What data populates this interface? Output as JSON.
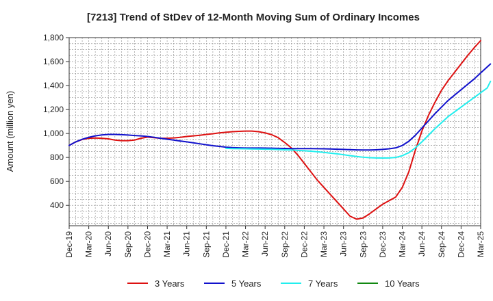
{
  "chart_data": {
    "type": "line",
    "title": "[7213]  Trend of StDev of 12-Month Moving Sum of Ordinary Incomes",
    "xlabel": "",
    "ylabel": "Amount (million yen)",
    "ylim": [
      230,
      1800
    ],
    "yticks": [
      400,
      600,
      800,
      1000,
      1200,
      1400,
      1600,
      1800
    ],
    "ytick_labels": [
      "400",
      "600",
      "800",
      "1,000",
      "1,200",
      "1,400",
      "1,600",
      "1,800"
    ],
    "xticks": [
      "Dec-19",
      "Mar-20",
      "Jun-20",
      "Sep-20",
      "Dec-20",
      "Mar-21",
      "Jun-21",
      "Sep-21",
      "Dec-21",
      "Mar-22",
      "Jun-22",
      "Sep-22",
      "Dec-22",
      "Mar-23",
      "Jun-23",
      "Sep-23",
      "Dec-23",
      "Mar-24",
      "Jun-24",
      "Sep-24",
      "Dec-24",
      "Mar-25"
    ],
    "grid": true,
    "legend_position": "bottom",
    "series": [
      {
        "name": "3 Years",
        "color": "#dd1111",
        "points": [
          [
            0,
            900
          ],
          [
            1,
            930
          ],
          [
            2,
            950
          ],
          [
            3,
            960
          ],
          [
            4,
            962
          ],
          [
            5,
            960
          ],
          [
            6,
            955
          ],
          [
            7,
            945
          ],
          [
            8,
            940
          ],
          [
            9,
            940
          ],
          [
            10,
            945
          ],
          [
            11,
            960
          ],
          [
            12,
            970
          ],
          [
            13,
            965
          ],
          [
            14,
            960
          ],
          [
            15,
            960
          ],
          [
            16,
            963
          ],
          [
            17,
            968
          ],
          [
            18,
            975
          ],
          [
            19,
            980
          ],
          [
            20,
            985
          ],
          [
            21,
            992
          ],
          [
            22,
            998
          ],
          [
            23,
            1005
          ],
          [
            24,
            1010
          ],
          [
            25,
            1015
          ],
          [
            26,
            1018
          ],
          [
            27,
            1020
          ],
          [
            28,
            1020
          ],
          [
            29,
            1015
          ],
          [
            30,
            1005
          ],
          [
            31,
            990
          ],
          [
            32,
            965
          ],
          [
            33,
            925
          ],
          [
            34,
            880
          ],
          [
            35,
            820
          ],
          [
            36,
            750
          ],
          [
            37,
            680
          ],
          [
            38,
            610
          ],
          [
            39,
            550
          ],
          [
            40,
            490
          ],
          [
            41,
            430
          ],
          [
            42,
            370
          ],
          [
            43,
            310
          ],
          [
            44,
            285
          ],
          [
            45,
            295
          ],
          [
            46,
            330
          ],
          [
            47,
            370
          ],
          [
            48,
            410
          ],
          [
            49,
            440
          ],
          [
            50,
            470
          ],
          [
            51,
            550
          ],
          [
            52,
            680
          ],
          [
            53,
            860
          ],
          [
            54,
            1020
          ],
          [
            55,
            1150
          ],
          [
            56,
            1260
          ],
          [
            57,
            1360
          ],
          [
            58,
            1440
          ],
          [
            59,
            1510
          ],
          [
            60,
            1580
          ],
          [
            61,
            1650
          ],
          [
            62,
            1715
          ],
          [
            63,
            1775
          ]
        ]
      },
      {
        "name": "5 Years",
        "color": "#1111cc",
        "points": [
          [
            0,
            900
          ],
          [
            1,
            930
          ],
          [
            2,
            952
          ],
          [
            3,
            968
          ],
          [
            4,
            980
          ],
          [
            5,
            988
          ],
          [
            6,
            992
          ],
          [
            7,
            992
          ],
          [
            8,
            990
          ],
          [
            9,
            987
          ],
          [
            10,
            983
          ],
          [
            11,
            980
          ],
          [
            12,
            975
          ],
          [
            13,
            968
          ],
          [
            14,
            960
          ],
          [
            15,
            952
          ],
          [
            16,
            945
          ],
          [
            17,
            937
          ],
          [
            18,
            930
          ],
          [
            19,
            922
          ],
          [
            20,
            914
          ],
          [
            21,
            906
          ],
          [
            22,
            898
          ],
          [
            23,
            892
          ],
          [
            24,
            886
          ],
          [
            25,
            882
          ],
          [
            26,
            880
          ],
          [
            27,
            879
          ],
          [
            28,
            879
          ],
          [
            29,
            879
          ],
          [
            30,
            878
          ],
          [
            31,
            877
          ],
          [
            32,
            876
          ],
          [
            33,
            875
          ],
          [
            34,
            874
          ],
          [
            35,
            874
          ],
          [
            36,
            874
          ],
          [
            37,
            874
          ],
          [
            38,
            873
          ],
          [
            39,
            872
          ],
          [
            40,
            871
          ],
          [
            41,
            869
          ],
          [
            42,
            867
          ],
          [
            43,
            865
          ],
          [
            44,
            863
          ],
          [
            45,
            862
          ],
          [
            46,
            862
          ],
          [
            47,
            864
          ],
          [
            48,
            867
          ],
          [
            49,
            872
          ],
          [
            50,
            880
          ],
          [
            51,
            900
          ],
          [
            52,
            935
          ],
          [
            53,
            985
          ],
          [
            54,
            1045
          ],
          [
            55,
            1105
          ],
          [
            56,
            1165
          ],
          [
            57,
            1220
          ],
          [
            58,
            1275
          ],
          [
            59,
            1320
          ],
          [
            60,
            1365
          ],
          [
            61,
            1410
          ],
          [
            62,
            1455
          ],
          [
            63,
            1505
          ],
          [
            64,
            1555
          ],
          [
            64.5,
            1580
          ]
        ]
      },
      {
        "name": "7 Years",
        "color": "#22eeee",
        "points": [
          [
            24,
            876
          ],
          [
            25,
            874
          ],
          [
            26,
            873
          ],
          [
            27,
            872
          ],
          [
            28,
            871
          ],
          [
            29,
            870
          ],
          [
            30,
            869
          ],
          [
            31,
            868
          ],
          [
            32,
            866
          ],
          [
            33,
            864
          ],
          [
            34,
            862
          ],
          [
            35,
            859
          ],
          [
            36,
            856
          ],
          [
            37,
            852
          ],
          [
            38,
            847
          ],
          [
            39,
            842
          ],
          [
            40,
            836
          ],
          [
            41,
            830
          ],
          [
            42,
            823
          ],
          [
            43,
            815
          ],
          [
            44,
            808
          ],
          [
            45,
            802
          ],
          [
            46,
            798
          ],
          [
            47,
            796
          ],
          [
            48,
            795
          ],
          [
            49,
            796
          ],
          [
            50,
            800
          ],
          [
            51,
            815
          ],
          [
            52,
            840
          ],
          [
            53,
            880
          ],
          [
            54,
            930
          ],
          [
            55,
            985
          ],
          [
            56,
            1040
          ],
          [
            57,
            1090
          ],
          [
            58,
            1140
          ],
          [
            59,
            1180
          ],
          [
            60,
            1220
          ],
          [
            61,
            1260
          ],
          [
            62,
            1300
          ],
          [
            63,
            1340
          ],
          [
            64,
            1380
          ],
          [
            64.5,
            1435
          ]
        ]
      },
      {
        "name": "10 Years",
        "color": "#118811",
        "points": []
      }
    ]
  }
}
